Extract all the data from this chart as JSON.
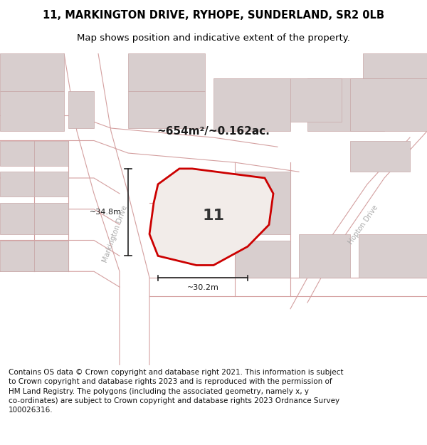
{
  "title_line1": "11, MARKINGTON DRIVE, RYHOPE, SUNDERLAND, SR2 0LB",
  "title_line2": "Map shows position and indicative extent of the property.",
  "area_label": "~654m²/~0.162ac.",
  "property_number": "11",
  "width_label": "~30.2m",
  "height_label": "~34.8m",
  "map_bg": "#ede5e2",
  "plot_fill": "#f2ece9",
  "plot_edge": "#cc0000",
  "road_line_color": "#d4a0a0",
  "building_fill": "#d8cece",
  "building_edge": "#c8a8a8",
  "street_label_markington": "Markington Drive",
  "street_label_hopton": "Hopton Drive",
  "title_fontsize": 10.5,
  "subtitle_fontsize": 9.5,
  "footer_fontsize": 7.5,
  "map_xlim": [
    0,
    100
  ],
  "map_ylim": [
    0,
    100
  ],
  "footer_lines": [
    "Contains OS data © Crown copyright and database right 2021. This information is subject",
    "to Crown copyright and database rights 2023 and is reproduced with the permission of",
    "HM Land Registry. The polygons (including the associated geometry, namely x, y",
    "co-ordinates) are subject to Crown copyright and database rights 2023 Ordnance Survey",
    "100026316."
  ]
}
